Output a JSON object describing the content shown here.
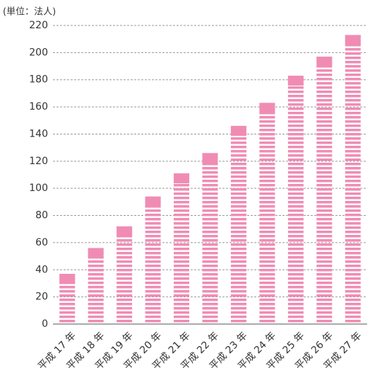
{
  "chart_data": {
    "type": "bar",
    "title": "(単位：法人)",
    "categories": [
      "平成 17 年",
      "平成 18 年",
      "平成 19 年",
      "平成 20 年",
      "平成 21 年",
      "平成 22 年",
      "平成 23 年",
      "平成 24 年",
      "平成 25 年",
      "平成 26 年",
      "平成 27 年"
    ],
    "values": [
      37,
      56,
      72,
      94,
      111,
      126,
      146,
      163,
      183,
      197,
      213
    ],
    "color": "#f08cb4",
    "ylim": [
      0,
      220
    ],
    "yticks": [
      0,
      20,
      40,
      60,
      80,
      100,
      120,
      140,
      160,
      180,
      200,
      220
    ],
    "grid": true
  }
}
